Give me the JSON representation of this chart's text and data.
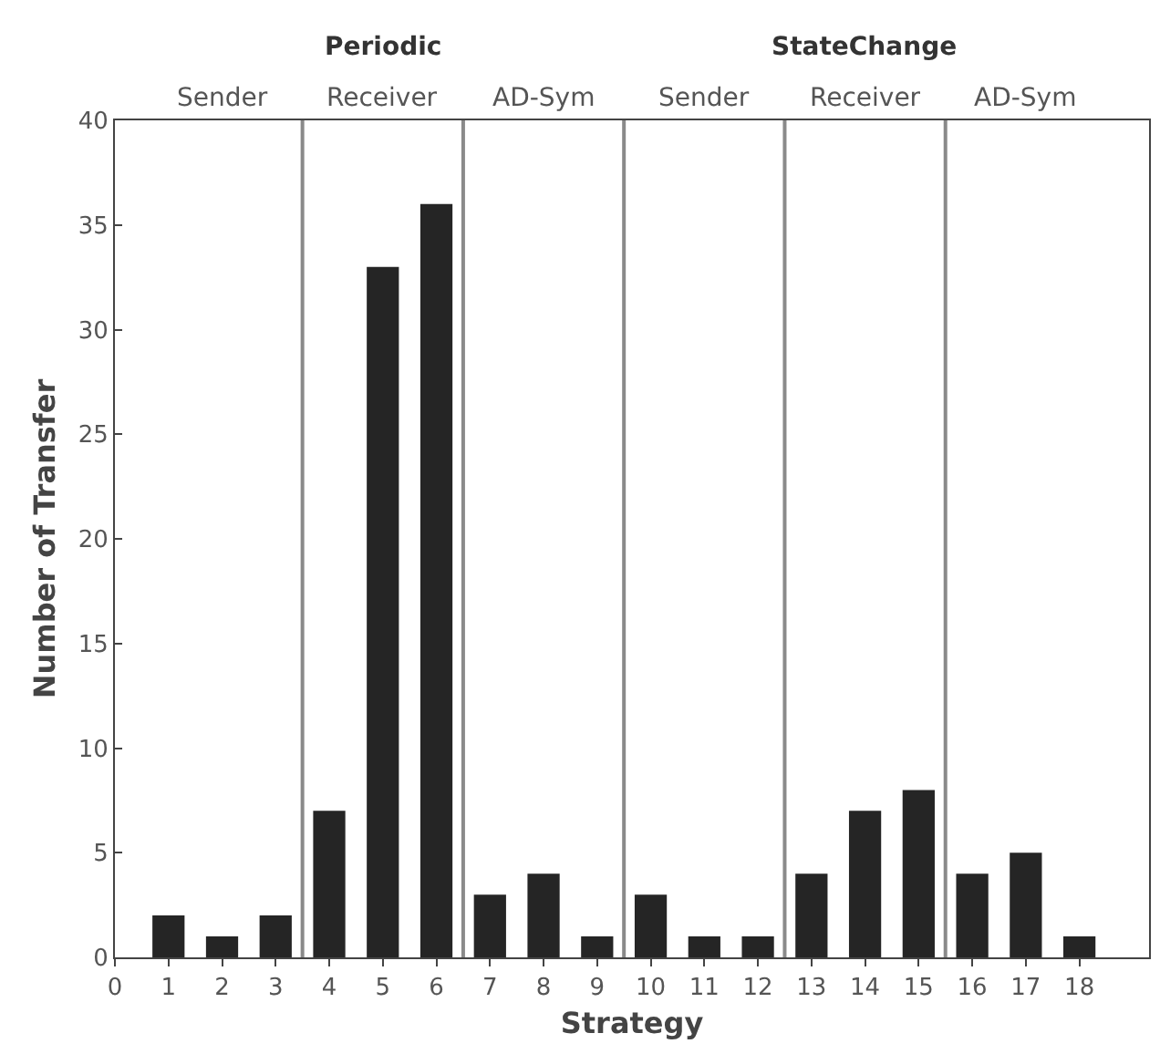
{
  "chart_data": {
    "type": "bar",
    "xlabel": "Strategy",
    "ylabel": "Number of Transfer",
    "x": [
      1,
      2,
      3,
      4,
      5,
      6,
      7,
      8,
      9,
      10,
      11,
      12,
      13,
      14,
      15,
      16,
      17,
      18
    ],
    "values": [
      2,
      1,
      2,
      7,
      33,
      36,
      3,
      4,
      1,
      3,
      1,
      1,
      4,
      7,
      8,
      4,
      5,
      1
    ],
    "color": "#252525",
    "xlim": [
      0,
      19.3
    ],
    "xticks": [
      0,
      1,
      2,
      3,
      4,
      5,
      6,
      7,
      8,
      9,
      10,
      11,
      12,
      13,
      14,
      15,
      16,
      17,
      18
    ],
    "ylim": [
      0,
      40
    ],
    "yticks": [
      0,
      5,
      10,
      15,
      20,
      25,
      30,
      35,
      40
    ],
    "grid": false,
    "legend": false,
    "ref_lines": [
      {
        "axis": "x",
        "value": 3.5,
        "color": "#8a8a8a"
      },
      {
        "axis": "x",
        "value": 6.5,
        "color": "#8a8a8a"
      },
      {
        "axis": "x",
        "value": 9.5,
        "color": "#8a8a8a"
      },
      {
        "axis": "x",
        "value": 12.5,
        "color": "#8a8a8a"
      },
      {
        "axis": "x",
        "value": 15.5,
        "color": "#8a8a8a"
      }
    ],
    "annotations": [
      "Periodic",
      "StateChange",
      "Sender",
      "Receiver",
      "AD-Sym",
      "Sender",
      "Receiver",
      "AD-Sym"
    ]
  }
}
